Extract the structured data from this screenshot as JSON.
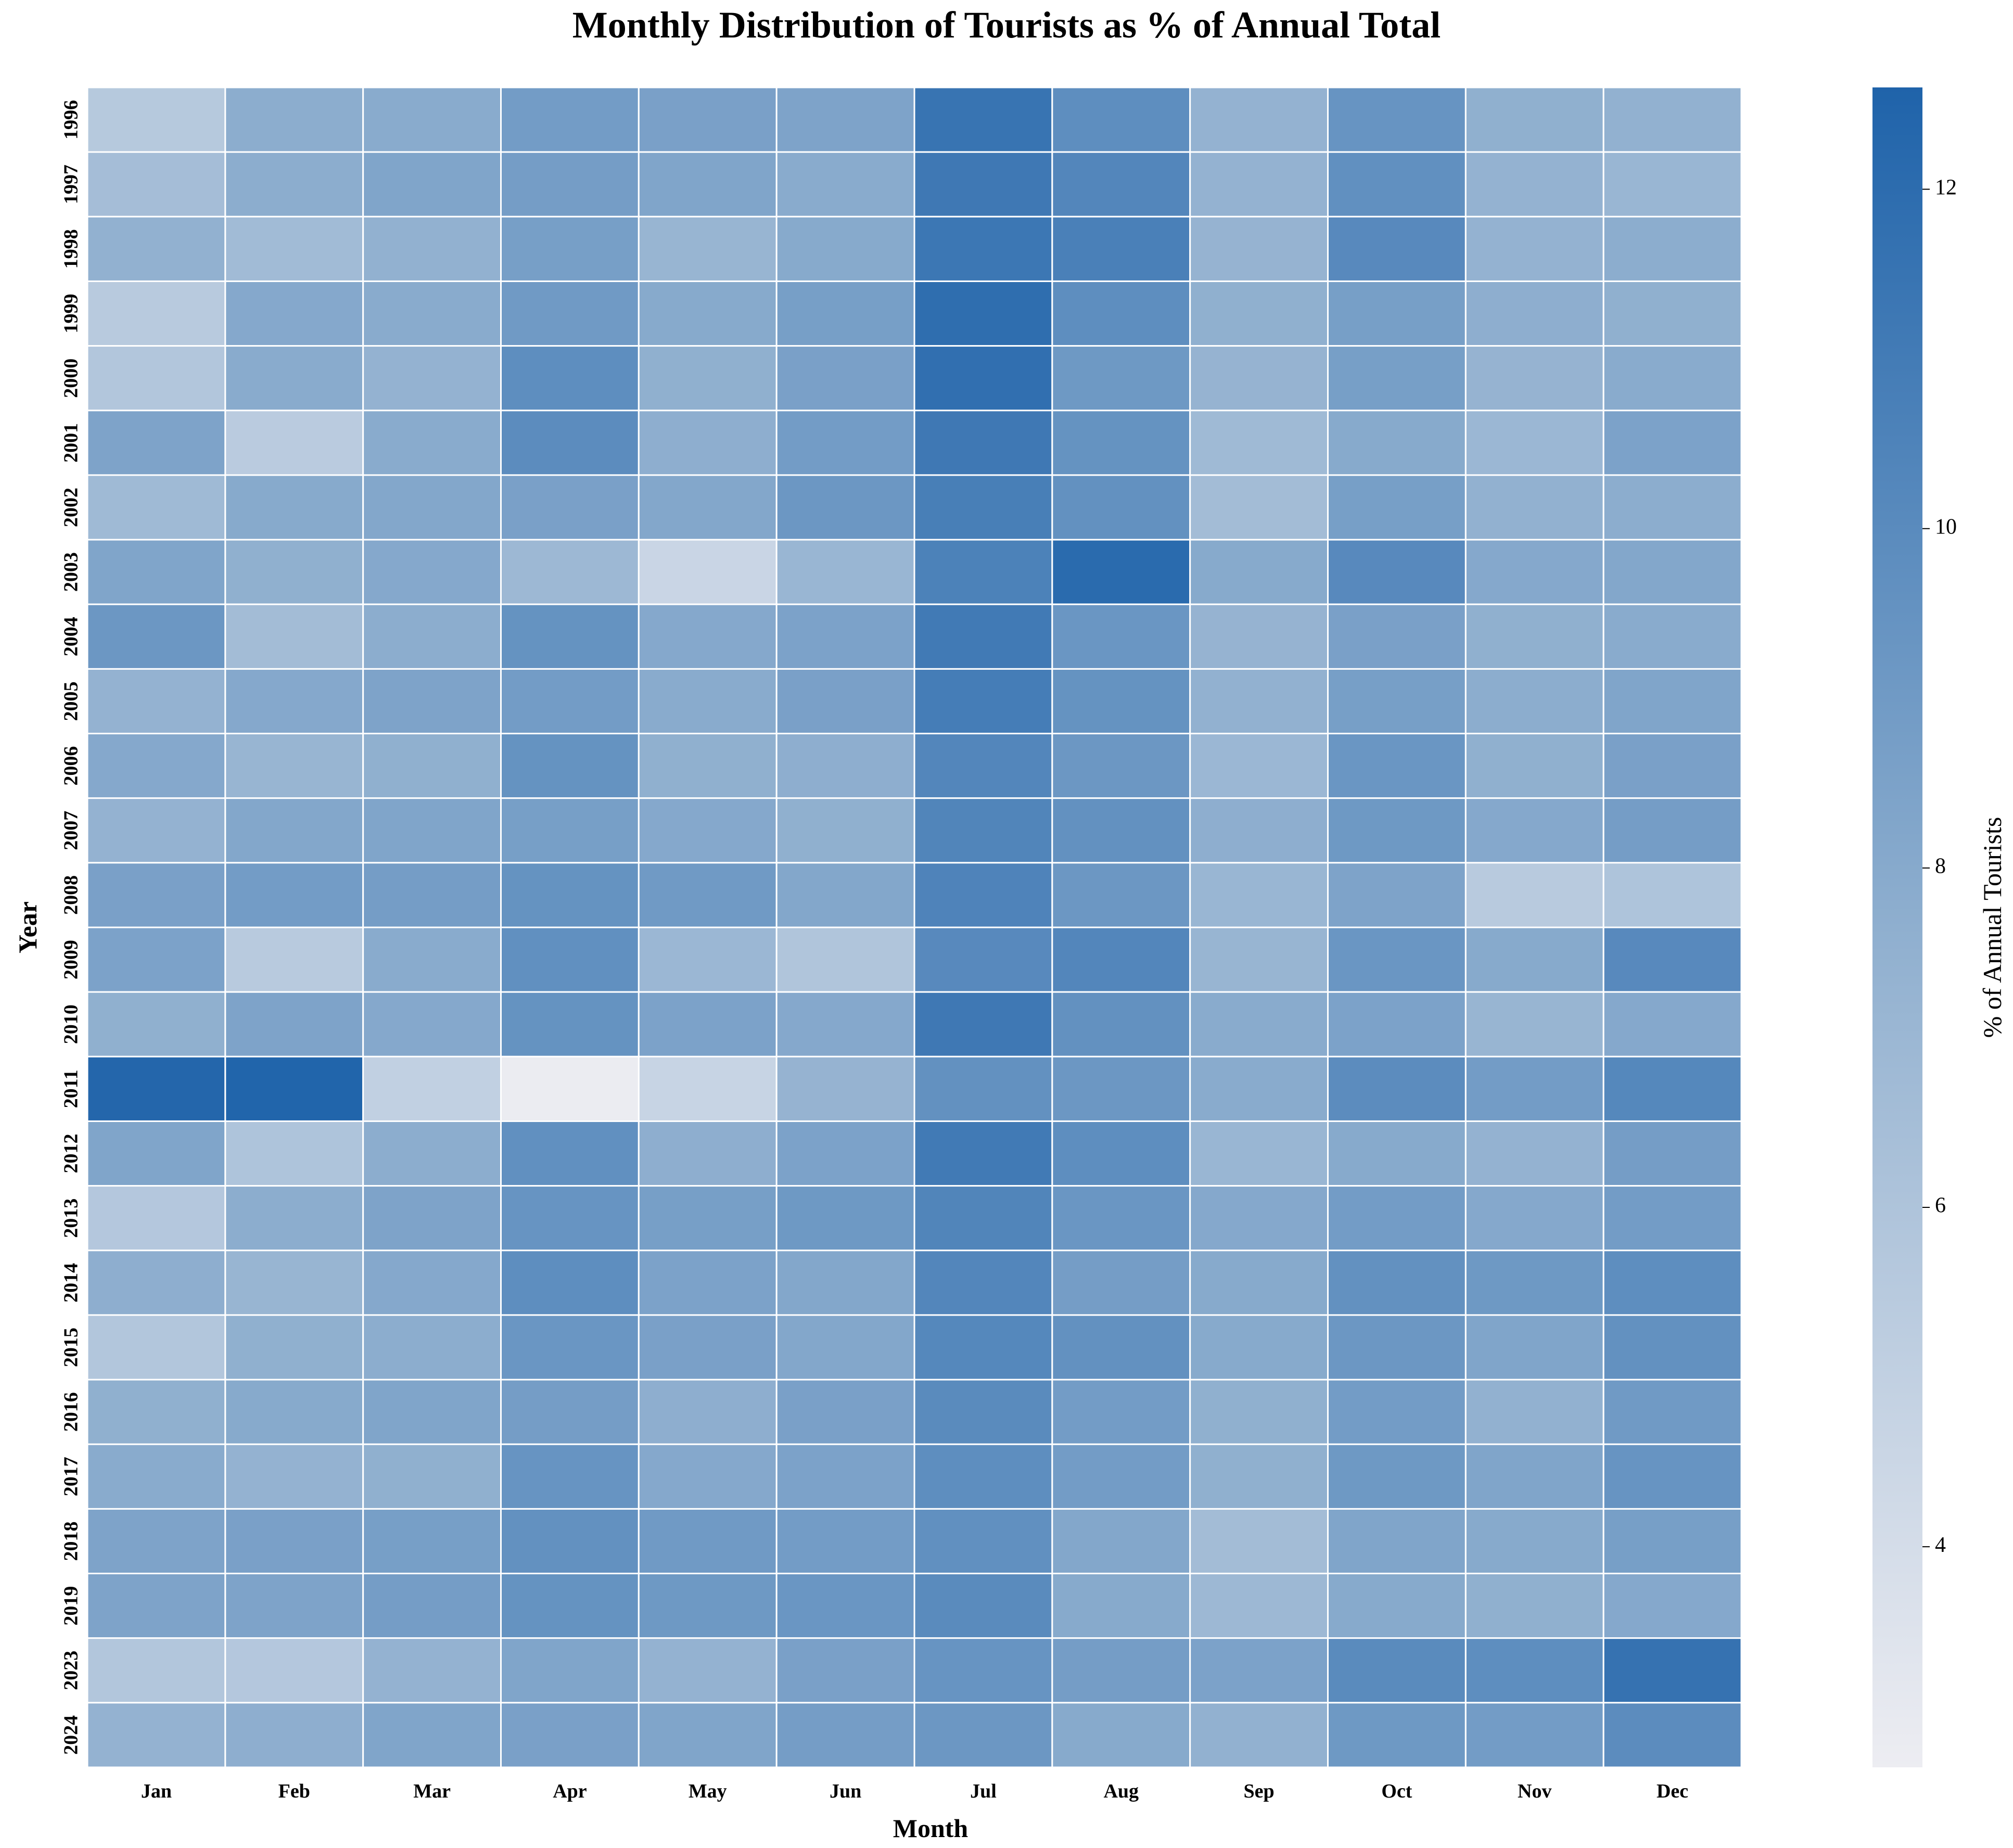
{
  "chart_data": {
    "type": "heatmap",
    "title": "Monthly Distribution of Tourists as % of Annual Total",
    "xlabel": "Month",
    "ylabel": "Year",
    "colorbar_label": "% of Annual Tourists",
    "colorbar_ticks": [
      4,
      6,
      8,
      10,
      12
    ],
    "vmin": 2.7,
    "vmax": 12.6,
    "colors": {
      "low": "#ededf2",
      "mid": "#8fafcf",
      "high": "#1f63aa",
      "grid": "#ffffff"
    },
    "months": [
      "Jan",
      "Feb",
      "Mar",
      "Apr",
      "May",
      "Jun",
      "Jul",
      "Aug",
      "Sep",
      "Oct",
      "Nov",
      "Dec"
    ],
    "years": [
      "1996",
      "1997",
      "1998",
      "1999",
      "2000",
      "2001",
      "2002",
      "2003",
      "2004",
      "2005",
      "2006",
      "2007",
      "2008",
      "2009",
      "2010",
      "2011",
      "2012",
      "2013",
      "2014",
      "2015",
      "2016",
      "2017",
      "2018",
      "2019",
      "2023",
      "2024"
    ],
    "values": [
      [
        5.6,
        7.8,
        7.9,
        8.9,
        8.6,
        8.4,
        11.5,
        9.8,
        7.4,
        9.4,
        7.6,
        7.5
      ],
      [
        6.5,
        7.8,
        8.3,
        8.8,
        8.3,
        7.9,
        11.2,
        10.3,
        7.4,
        9.7,
        7.4,
        7.1
      ],
      [
        7.5,
        6.7,
        7.5,
        8.7,
        7.2,
        8.0,
        11.3,
        10.7,
        7.3,
        10.1,
        7.4,
        7.8
      ],
      [
        5.5,
        8.1,
        7.9,
        9.0,
        8.0,
        8.7,
        11.9,
        9.8,
        7.6,
        8.7,
        7.7,
        7.6
      ],
      [
        5.8,
        7.9,
        7.4,
        9.8,
        7.6,
        8.6,
        11.8,
        9.1,
        7.3,
        8.7,
        7.3,
        7.9
      ],
      [
        8.4,
        5.4,
        7.9,
        9.9,
        7.7,
        8.9,
        11.2,
        9.5,
        6.8,
        8.0,
        7.0,
        8.5
      ],
      [
        6.8,
        8.0,
        8.2,
        8.6,
        8.2,
        9.2,
        10.8,
        9.6,
        6.6,
        8.7,
        7.5,
        7.8
      ],
      [
        8.3,
        7.6,
        8.1,
        6.9,
        4.6,
        7.1,
        10.6,
        12.1,
        8.0,
        10.1,
        8.1,
        8.2
      ],
      [
        9.2,
        6.6,
        7.8,
        9.5,
        8.1,
        8.5,
        11.1,
        9.3,
        7.3,
        8.6,
        7.6,
        7.9
      ],
      [
        7.4,
        8.1,
        8.4,
        8.9,
        7.9,
        8.6,
        10.9,
        9.5,
        7.5,
        8.7,
        7.8,
        8.3
      ],
      [
        8.1,
        7.2,
        7.6,
        9.5,
        7.6,
        7.7,
        10.3,
        9.2,
        7.0,
        9.3,
        7.6,
        8.6
      ],
      [
        7.4,
        8.2,
        8.3,
        8.7,
        8.1,
        7.6,
        10.4,
        9.6,
        7.7,
        9.1,
        8.1,
        8.8
      ],
      [
        8.6,
        8.9,
        8.8,
        9.5,
        9.0,
        8.2,
        10.5,
        9.2,
        7.1,
        8.4,
        5.5,
        6.0
      ],
      [
        8.5,
        5.5,
        7.9,
        9.7,
        7.0,
        5.9,
        10.1,
        10.3,
        7.2,
        9.3,
        8.0,
        10.1
      ],
      [
        7.6,
        8.4,
        8.1,
        9.5,
        8.5,
        8.1,
        11.2,
        9.6,
        7.9,
        8.5,
        7.2,
        8.1
      ],
      [
        12.4,
        12.5,
        5.0,
        2.8,
        4.7,
        7.3,
        9.6,
        9.2,
        7.9,
        9.9,
        8.9,
        10.2
      ],
      [
        8.3,
        6.0,
        7.8,
        9.7,
        7.7,
        8.5,
        11.1,
        9.8,
        7.1,
        8.0,
        7.4,
        8.8
      ],
      [
        5.7,
        7.8,
        8.4,
        9.4,
        8.7,
        9.1,
        10.4,
        9.3,
        8.1,
        8.9,
        8.1,
        8.9
      ],
      [
        7.7,
        7.2,
        8.1,
        9.8,
        8.5,
        8.2,
        10.3,
        8.8,
        8.0,
        9.6,
        9.1,
        9.8
      ],
      [
        5.8,
        7.6,
        7.8,
        9.3,
        8.6,
        8.2,
        10.2,
        9.6,
        8.0,
        9.2,
        8.3,
        9.6
      ],
      [
        7.6,
        8.0,
        8.3,
        8.8,
        7.7,
        8.6,
        10.0,
        8.9,
        7.6,
        8.9,
        7.5,
        9.0
      ],
      [
        7.9,
        7.4,
        7.6,
        9.4,
        8.1,
        8.5,
        9.8,
        8.9,
        7.6,
        9.1,
        8.3,
        9.4
      ],
      [
        8.4,
        8.6,
        8.7,
        9.6,
        9.0,
        8.9,
        9.7,
        8.2,
        6.6,
        8.3,
        8.0,
        8.7
      ],
      [
        8.4,
        8.4,
        8.8,
        9.5,
        9.1,
        9.3,
        10.0,
        8.0,
        6.9,
        8.0,
        7.6,
        8.1
      ],
      [
        5.8,
        5.7,
        7.4,
        8.3,
        7.4,
        8.6,
        9.4,
        8.8,
        8.5,
        10.0,
        9.8,
        11.6
      ],
      [
        7.4,
        7.7,
        8.3,
        8.6,
        8.3,
        8.8,
        9.2,
        8.0,
        7.5,
        9.1,
        8.9,
        9.9
      ]
    ]
  }
}
